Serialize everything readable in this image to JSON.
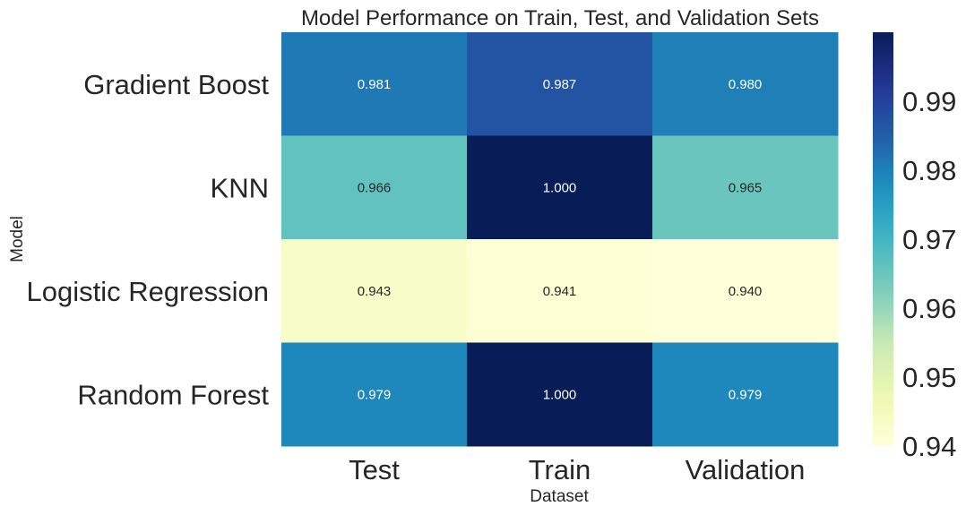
{
  "chart_data": {
    "type": "heatmap",
    "title": "Model Performance on Train, Test, and Validation Sets",
    "xlabel": "Dataset",
    "ylabel": "Model",
    "columns": [
      "Test",
      "Train",
      "Validation"
    ],
    "rows": [
      "Gradient Boost",
      "KNN",
      "Logistic Regression",
      "Random Forest"
    ],
    "values": [
      [
        0.981,
        0.987,
        0.98
      ],
      [
        0.966,
        1.0,
        0.965
      ],
      [
        0.943,
        0.941,
        0.94
      ],
      [
        0.979,
        1.0,
        0.979
      ]
    ],
    "annotations": [
      [
        "0.981",
        "0.987",
        "0.980"
      ],
      [
        "0.966",
        "1.000",
        "0.965"
      ],
      [
        "0.943",
        "0.941",
        "0.940"
      ],
      [
        "0.979",
        "1.000",
        "0.979"
      ]
    ],
    "colormap": "YlGnBu",
    "vmin": 0.94,
    "vmax": 1.0,
    "colorbar_ticks": [
      "0.94",
      "0.95",
      "0.96",
      "0.97",
      "0.98",
      "0.99"
    ]
  }
}
